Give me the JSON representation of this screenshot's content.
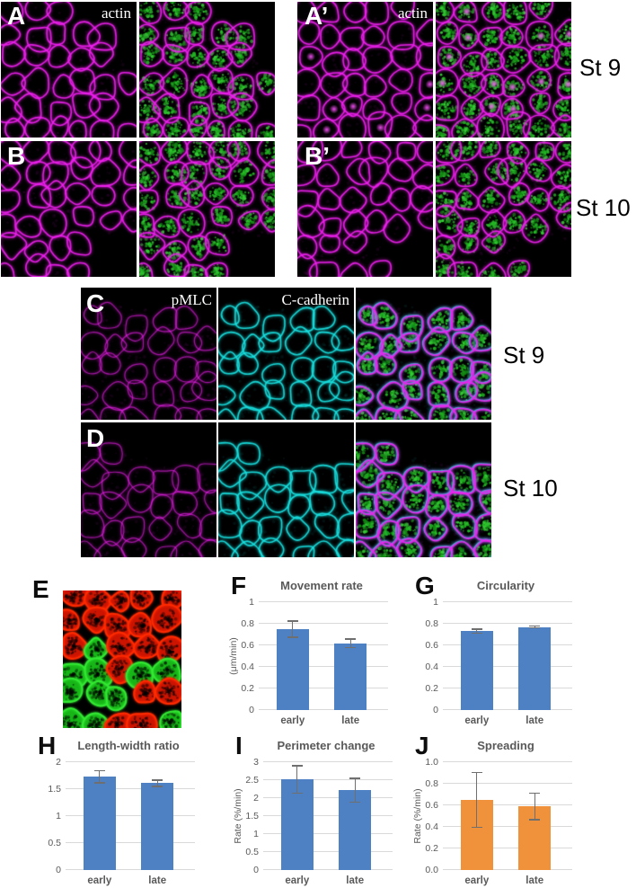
{
  "panels": {
    "A": {
      "label": "A",
      "marker": "actin"
    },
    "Ap": {
      "label": "A’",
      "marker": "actin"
    },
    "B": {
      "label": "B"
    },
    "Bp": {
      "label": "B’"
    },
    "C": {
      "label": "C",
      "marker1": "pMLC",
      "marker2": "C-cadherin"
    },
    "D": {
      "label": "D"
    },
    "E": {
      "label": "E"
    },
    "F": {
      "label": "F"
    },
    "G": {
      "label": "G"
    },
    "H": {
      "label": "H"
    },
    "I": {
      "label": "I"
    },
    "J": {
      "label": "J"
    }
  },
  "stages": {
    "row_a": "St 9",
    "row_b": "St 10",
    "row_c": "St 9",
    "row_d": "St 10"
  },
  "colors": {
    "magenta": "#ee1fee",
    "cyan": "#19dede",
    "green": "#27b527",
    "red": "#d81400",
    "bar_blue": "#4d81c4",
    "bar_orange": "#f0913c",
    "grid": "#d9d9d9",
    "chart_text": "#595959",
    "error_bar": "#6f6f6f"
  },
  "chart_data": [
    {
      "panel": "F",
      "type": "bar",
      "title": "Movement rate",
      "ylabel": "(μm/min)",
      "categories": [
        "early",
        "late"
      ],
      "values": [
        0.75,
        0.62
      ],
      "errors": [
        0.08,
        0.045
      ],
      "ylim": [
        0,
        1
      ],
      "yticks": [
        "0",
        "0.2",
        "0.4",
        "0.6",
        "0.8",
        "1"
      ],
      "bar_color": "#4d81c4",
      "grid": true,
      "legend": "none"
    },
    {
      "panel": "G",
      "type": "bar",
      "title": "Circularity",
      "ylabel": "",
      "categories": [
        "early",
        "late"
      ],
      "values": [
        0.73,
        0.77
      ],
      "errors": [
        0.025,
        0.015
      ],
      "ylim": [
        0,
        1
      ],
      "yticks": [
        "0",
        "0.2",
        "0.4",
        "0.6",
        "0.8",
        "1"
      ],
      "bar_color": "#4d81c4",
      "grid": true,
      "legend": "none"
    },
    {
      "panel": "H",
      "type": "bar",
      "title": "Length-width ratio",
      "ylabel": "",
      "categories": [
        "early",
        "late"
      ],
      "values": [
        1.73,
        1.61
      ],
      "errors": [
        0.125,
        0.07
      ],
      "ylim": [
        0,
        2
      ],
      "yticks": [
        "0",
        "0.5",
        "1",
        "1.5",
        "2"
      ],
      "bar_color": "#4d81c4",
      "grid": true,
      "legend": "none"
    },
    {
      "panel": "I",
      "type": "bar",
      "title": "Perimeter change",
      "ylabel": "Rate (%/min)",
      "categories": [
        "early",
        "late"
      ],
      "values": [
        2.52,
        2.22
      ],
      "errors": [
        0.4,
        0.35
      ],
      "ylim": [
        0,
        3
      ],
      "yticks": [
        "0",
        "0.5",
        "1",
        "1.5",
        "2",
        "2.5",
        "3"
      ],
      "bar_color": "#4d81c4",
      "grid": true,
      "legend": "none"
    },
    {
      "panel": "J",
      "type": "bar",
      "title": "Spreading",
      "ylabel": "Rate (%/min)",
      "categories": [
        "early",
        "late"
      ],
      "values": [
        0.65,
        0.59
      ],
      "errors": [
        0.26,
        0.13
      ],
      "ylim": [
        0,
        1
      ],
      "yticks": [
        "0.0",
        "0.2",
        "0.4",
        "0.6",
        "0.8",
        "1.0"
      ],
      "bar_color": "#f0913c",
      "grid": true,
      "legend": "none"
    }
  ]
}
